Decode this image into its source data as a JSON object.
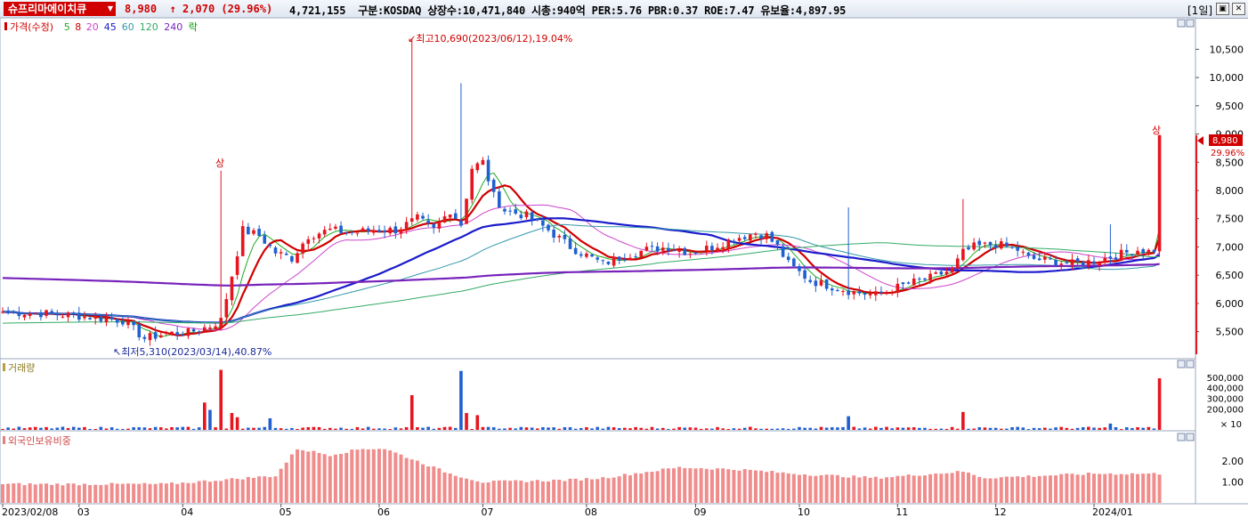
{
  "titlebar": {
    "stock_name": "슈프리마에이치큐",
    "price": "8,980",
    "change_arrow": "↑",
    "change": "2,070",
    "change_pct": "(29.96%)",
    "volume": "4,721,155",
    "market": "구분:KOSDAQ",
    "shares": "상장수:10,471,840",
    "market_cap": "시총:940억",
    "per": "PER:5.76",
    "pbr": "PBR:0.37",
    "roe": "ROE:7.47",
    "float": "유보율:4,897.95",
    "period": "[1일]"
  },
  "price_panel": {
    "legend": [
      {
        "label": "가격(수정)",
        "color": "#d00000"
      },
      {
        "label": "5",
        "color": "#22aa22"
      },
      {
        "label": "8",
        "color": "#d00000"
      },
      {
        "label": "20",
        "color": "#cc44cc"
      },
      {
        "label": "45",
        "color": "#1a1acc"
      },
      {
        "label": "60",
        "color": "#3399aa"
      },
      {
        "label": "120",
        "color": "#33aa66"
      },
      {
        "label": "240",
        "color": "#7722bb"
      },
      {
        "label": "락",
        "color": "#009900"
      }
    ],
    "high_label": "최고10,690(2023/06/12),19.04%",
    "low_label": "최저5,310(2023/03/14),40.87%",
    "limit_up_label": "상",
    "last_price_tag": "8,980",
    "last_pct_tag": "29.96%"
  },
  "volume_panel": {
    "title": "거래량",
    "unit_label": "× 10"
  },
  "foreign_panel": {
    "title": "외국인보유비중"
  },
  "colors": {
    "up": "#e8141e",
    "down": "#1f5fd0",
    "accent": "#d00000"
  },
  "chart_data": {
    "type": "candlestick",
    "price_axis": {
      "min": 5100,
      "max": 10900,
      "ticks": [
        5500,
        6000,
        6500,
        7000,
        7500,
        8000,
        8500,
        9000,
        9500,
        10000,
        10500
      ]
    },
    "price_tick_labels": [
      "5,500",
      "6,000",
      "6,500",
      "7,000",
      "7,500",
      "8,000",
      "8,500",
      "9,000",
      "9,500",
      "10,000",
      "10,500"
    ],
    "volume_axis": {
      "max": 600000,
      "ticks": [
        200000,
        300000,
        400000,
        500000
      ]
    },
    "volume_tick_labels": [
      "200,000",
      "300,000",
      "400,000",
      "500,000"
    ],
    "foreign_axis": {
      "min": 0,
      "max": 3.2,
      "ticks": [
        1.0,
        2.0
      ]
    },
    "foreign_tick_labels": [
      "1.00",
      "2.00"
    ],
    "date_labels": [
      "2023/02/08",
      "03",
      "04",
      "05",
      "06",
      "07",
      "08",
      "09",
      "10",
      "11",
      "12",
      "2024/01"
    ],
    "high": {
      "price": 10690,
      "date": "2023/06/12"
    },
    "low": {
      "price": 5310,
      "date": "2023/03/14"
    },
    "last": {
      "price": 8980,
      "prev_close": 6910
    },
    "close_anchors": [
      [
        0,
        5850
      ],
      [
        8,
        5820
      ],
      [
        14,
        5780
      ],
      [
        22,
        5700
      ],
      [
        26,
        5380
      ],
      [
        30,
        5470
      ],
      [
        34,
        5480
      ],
      [
        38,
        5600
      ],
      [
        40,
        5700
      ],
      [
        42,
        6500
      ],
      [
        44,
        7300
      ],
      [
        47,
        7200
      ],
      [
        50,
        6900
      ],
      [
        53,
        6800
      ],
      [
        56,
        7200
      ],
      [
        60,
        7300
      ],
      [
        64,
        7250
      ],
      [
        68,
        7300
      ],
      [
        72,
        7300
      ],
      [
        76,
        7500
      ],
      [
        79,
        7300
      ],
      [
        82,
        7650
      ],
      [
        84,
        7400
      ],
      [
        86,
        8400
      ],
      [
        88,
        8500
      ],
      [
        90,
        7900
      ],
      [
        92,
        7650
      ],
      [
        96,
        7550
      ],
      [
        100,
        7300
      ],
      [
        104,
        7000
      ],
      [
        108,
        6800
      ],
      [
        110,
        6700
      ],
      [
        114,
        6850
      ],
      [
        118,
        6950
      ],
      [
        122,
        7000
      ],
      [
        126,
        6900
      ],
      [
        130,
        7000
      ],
      [
        134,
        7150
      ],
      [
        138,
        7250
      ],
      [
        140,
        7200
      ],
      [
        142,
        7000
      ],
      [
        144,
        6700
      ],
      [
        146,
        6550
      ],
      [
        148,
        6400
      ],
      [
        152,
        6300
      ],
      [
        156,
        6200
      ],
      [
        160,
        6150
      ],
      [
        163,
        6250
      ],
      [
        166,
        6350
      ],
      [
        170,
        6450
      ],
      [
        174,
        6600
      ],
      [
        176,
        6900
      ],
      [
        178,
        7000
      ],
      [
        182,
        7050
      ],
      [
        186,
        6950
      ],
      [
        188,
        6800
      ],
      [
        192,
        6750
      ],
      [
        196,
        6700
      ],
      [
        200,
        6750
      ],
      [
        204,
        6850
      ],
      [
        208,
        6950
      ],
      [
        211,
        6910
      ],
      [
        212,
        8980
      ]
    ],
    "ma_lines": [
      {
        "name": "5",
        "period": 5,
        "color": "#22aa22"
      },
      {
        "name": "8",
        "period": 8,
        "color": "#d00000"
      },
      {
        "name": "20",
        "period": 20,
        "color": "#cc44cc"
      },
      {
        "name": "45",
        "period": 45,
        "color": "#1a1acc"
      },
      {
        "name": "60",
        "period": 60,
        "color": "#3399aa"
      },
      {
        "name": "120",
        "period": 120,
        "color": "#33aa66"
      },
      {
        "name": "240",
        "period": 240,
        "color": "#7722bb"
      }
    ],
    "volume_spikes": [
      [
        37,
        260000
      ],
      [
        38,
        190000
      ],
      [
        40,
        570000
      ],
      [
        42,
        160000
      ],
      [
        43,
        120000
      ],
      [
        49,
        110000
      ],
      [
        75,
        330000
      ],
      [
        84,
        560000
      ],
      [
        85,
        160000
      ],
      [
        87,
        140000
      ],
      [
        155,
        130000
      ],
      [
        176,
        170000
      ],
      [
        203,
        60000
      ],
      [
        212,
        490000
      ]
    ],
    "foreign_anchors": [
      [
        0,
        0.9
      ],
      [
        30,
        0.9
      ],
      [
        50,
        1.3
      ],
      [
        54,
        2.6
      ],
      [
        60,
        2.3
      ],
      [
        66,
        2.6
      ],
      [
        70,
        2.6
      ],
      [
        76,
        2.0
      ],
      [
        82,
        1.4
      ],
      [
        88,
        1.0
      ],
      [
        104,
        1.1
      ],
      [
        110,
        1.2
      ],
      [
        124,
        1.7
      ],
      [
        135,
        1.6
      ],
      [
        145,
        1.4
      ],
      [
        160,
        1.2
      ],
      [
        176,
        1.5
      ],
      [
        180,
        1.2
      ],
      [
        200,
        1.4
      ],
      [
        212,
        1.4
      ]
    ]
  }
}
